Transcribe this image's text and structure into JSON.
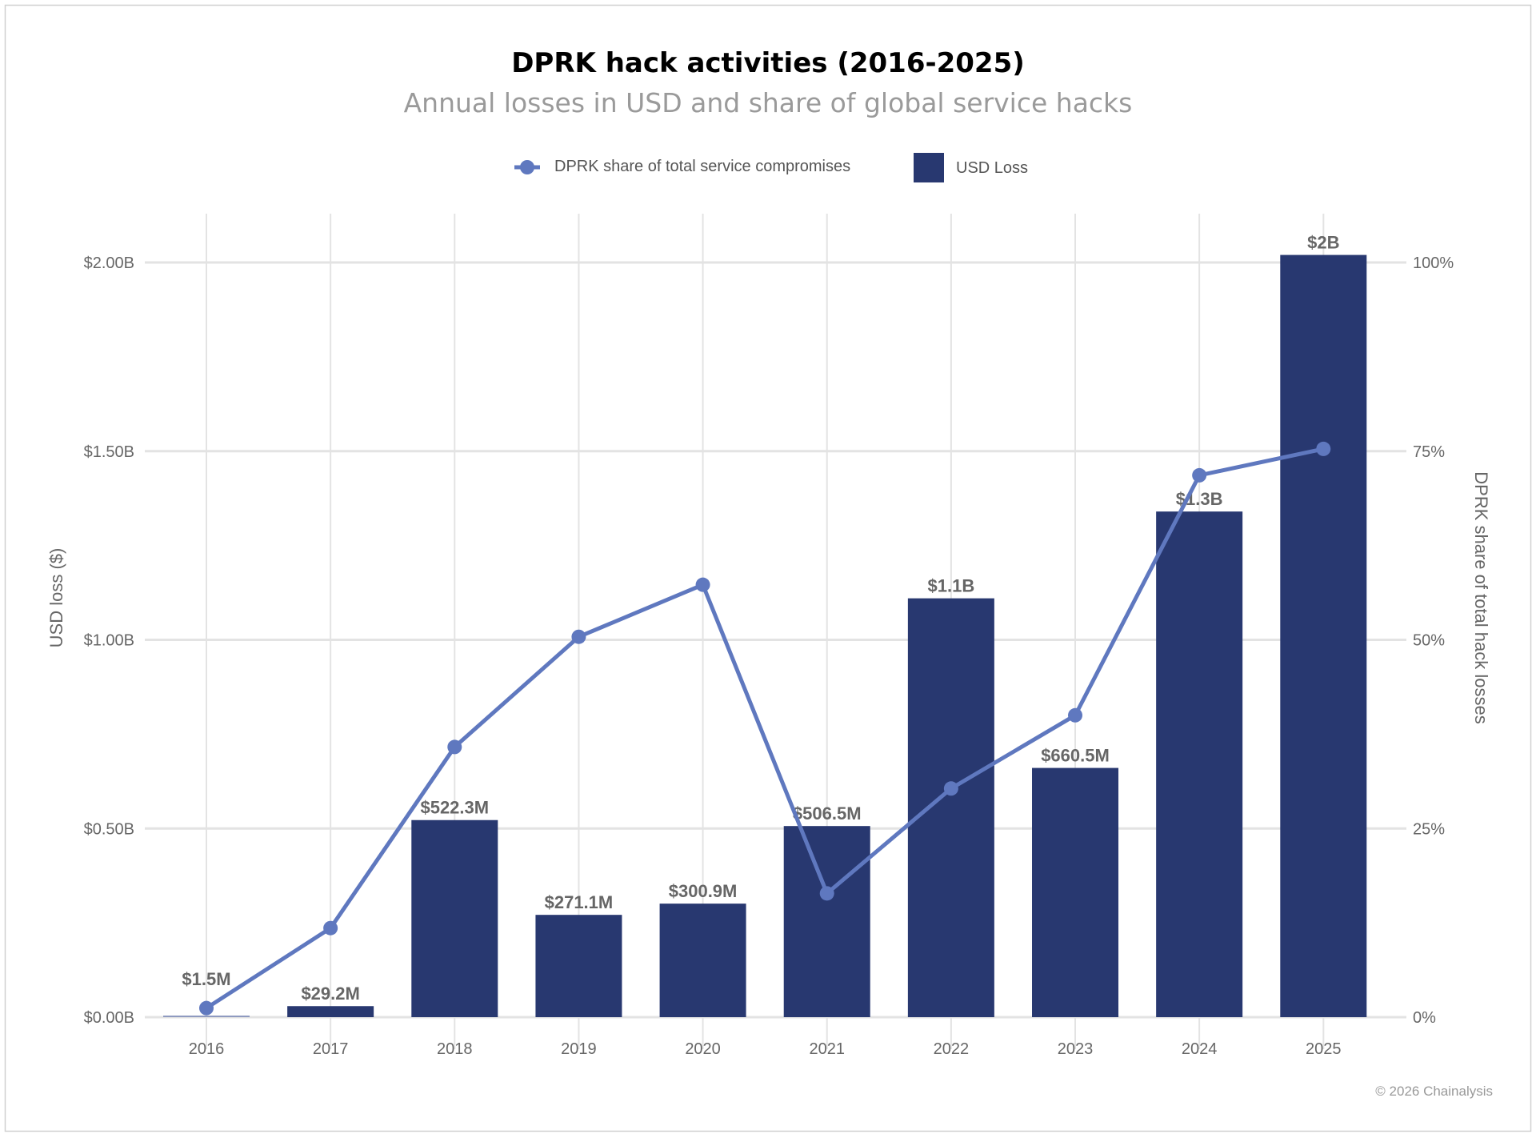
{
  "chart_data": {
    "type": "bar+line",
    "title": "DPRK hack activities (2016-2025)",
    "subtitle": "Annual losses in USD and share of global service hacks",
    "categories": [
      "2016",
      "2017",
      "2018",
      "2019",
      "2020",
      "2021",
      "2022",
      "2023",
      "2024",
      "2025"
    ],
    "series": [
      {
        "name": "USD Loss",
        "type": "bar",
        "axis": "left",
        "color": "#283870",
        "values": [
          0.0015,
          0.0292,
          0.5223,
          0.2711,
          0.3009,
          0.5065,
          1.11,
          0.6605,
          1.34,
          2.02
        ],
        "labels": [
          "$1.5M",
          "$29.2M",
          "$522.3M",
          "$271.1M",
          "$300.9M",
          "$506.5M",
          "$1.1B",
          "$660.5M",
          "$1.3B",
          "$2B"
        ]
      },
      {
        "name": "DPRK share of total service compromises",
        "type": "line",
        "axis": "right",
        "color": "#5f78bf",
        "values": [
          1.2,
          11.8,
          35.8,
          50.4,
          57.3,
          16.4,
          30.3,
          40.0,
          71.8,
          75.3
        ]
      }
    ],
    "left_axis": {
      "label": "USD loss ($)",
      "ylim": [
        0,
        2.0
      ],
      "ticks": [
        0,
        0.5,
        1.0,
        1.5,
        2.0
      ],
      "tick_labels": [
        "$0.00B",
        "$0.50B",
        "$1.00B",
        "$1.50B",
        "$2.00B"
      ]
    },
    "right_axis": {
      "label": "DPRK share of total hack losses",
      "ylim": [
        0,
        100
      ],
      "ticks": [
        0,
        25,
        50,
        75,
        100
      ],
      "tick_labels": [
        "0%",
        "25%",
        "50%",
        "75%",
        "100%"
      ]
    },
    "grid": true,
    "legend_placement": "top-center",
    "credit": "© 2026 Chainalysis"
  }
}
